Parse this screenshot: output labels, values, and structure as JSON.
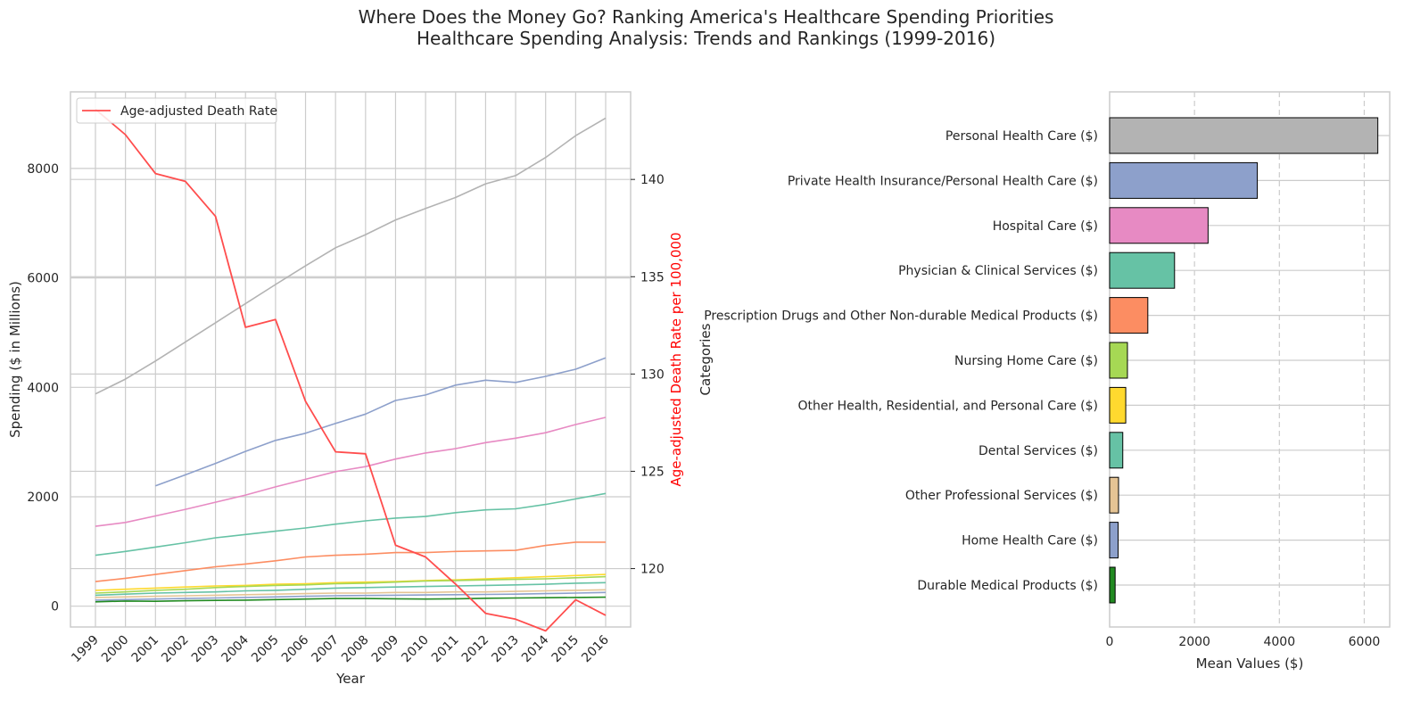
{
  "suptitle": "Where Does the Money Go? Ranking America's Healthcare Spending Priorities",
  "subtitle": "Healthcare Spending Analysis: Trends and Rankings (1999-2016)",
  "chart_data": [
    {
      "type": "line",
      "xlabel": "Year",
      "ylabel": "Spending ($ in Millions)",
      "y2label": "Age-adjusted Death Rate per 100,000",
      "x": [
        "1999",
        "2000",
        "2001",
        "2002",
        "2003",
        "2004",
        "2005",
        "2006",
        "2007",
        "2008",
        "2009",
        "2010",
        "2011",
        "2012",
        "2013",
        "2014",
        "2015",
        "2016"
      ],
      "ylim": [
        -380,
        9400
      ],
      "yticks": [
        0,
        2000,
        4000,
        6000,
        8000
      ],
      "y2lim": [
        117,
        144.5
      ],
      "y2ticks": [
        120,
        125,
        130,
        135,
        140
      ],
      "grid": true,
      "legend": {
        "position": "top-left",
        "entries": [
          "Age-adjusted Death Rate"
        ]
      },
      "series": [
        {
          "color": "#b3b3b3",
          "axis": "left",
          "values": [
            3880,
            4150,
            4480,
            4830,
            5180,
            5530,
            5880,
            6220,
            6550,
            6790,
            7060,
            7270,
            7470,
            7720,
            7870,
            8200,
            8600,
            8920
          ]
        },
        {
          "color": "#8da0cb",
          "axis": "left",
          "values": [
            null,
            null,
            2200,
            2400,
            2610,
            2830,
            3030,
            3160,
            3340,
            3510,
            3760,
            3860,
            4040,
            4130,
            4090,
            4200,
            4330,
            4540
          ]
        },
        {
          "color": "#e78ac3",
          "axis": "left",
          "values": [
            1460,
            1530,
            1650,
            1770,
            1900,
            2030,
            2180,
            2320,
            2460,
            2550,
            2690,
            2800,
            2880,
            2990,
            3070,
            3170,
            3320,
            3450
          ]
        },
        {
          "color": "#66c2a5",
          "axis": "left",
          "values": [
            930,
            1000,
            1080,
            1160,
            1250,
            1310,
            1370,
            1430,
            1500,
            1560,
            1610,
            1640,
            1710,
            1760,
            1780,
            1860,
            1960,
            2060
          ]
        },
        {
          "color": "#fc8d62",
          "axis": "left",
          "values": [
            450,
            510,
            580,
            650,
            720,
            770,
            830,
            900,
            930,
            950,
            980,
            980,
            1000,
            1010,
            1020,
            1110,
            1170,
            1170
          ]
        },
        {
          "color": "#ffd92f",
          "axis": "left",
          "values": [
            290,
            310,
            330,
            350,
            370,
            380,
            400,
            410,
            430,
            440,
            450,
            470,
            480,
            500,
            520,
            540,
            560,
            580
          ]
        },
        {
          "color": "#a6d854",
          "axis": "left",
          "values": [
            240,
            260,
            290,
            310,
            340,
            360,
            380,
            390,
            410,
            420,
            440,
            460,
            470,
            480,
            490,
            500,
            520,
            540
          ]
        },
        {
          "color": "#66c2a5",
          "axis": "left",
          "values": [
            200,
            220,
            240,
            250,
            260,
            280,
            290,
            310,
            330,
            340,
            350,
            360,
            370,
            380,
            390,
            400,
            420,
            430
          ]
        },
        {
          "color": "#e5c494",
          "axis": "left",
          "values": [
            160,
            170,
            180,
            190,
            200,
            210,
            220,
            230,
            240,
            240,
            250,
            250,
            260,
            260,
            270,
            280,
            290,
            300
          ]
        },
        {
          "color": "#8da0cb",
          "axis": "left",
          "values": [
            110,
            120,
            130,
            140,
            150,
            160,
            170,
            180,
            190,
            195,
            200,
            205,
            210,
            215,
            220,
            230,
            240,
            250
          ]
        },
        {
          "color": "#228b22",
          "axis": "left",
          "values": [
            80,
            95,
            90,
            100,
            105,
            110,
            120,
            130,
            140,
            140,
            135,
            130,
            135,
            145,
            150,
            155,
            160,
            165
          ]
        },
        {
          "name": "Age-adjusted Death Rate",
          "color": "#ff4d4d",
          "axis": "right",
          "values": [
            143.6,
            142.3,
            140.3,
            139.9,
            138.1,
            132.4,
            132.8,
            128.6,
            126.0,
            125.9,
            121.2,
            120.6,
            119.2,
            117.7,
            117.4,
            116.8,
            118.4,
            117.6
          ]
        }
      ]
    },
    {
      "type": "bar",
      "orientation": "horizontal",
      "xlabel": "Mean Values ($)",
      "ylabel": "Categories",
      "xlim": [
        0,
        6600
      ],
      "xticks": [
        0,
        2000,
        4000,
        6000
      ],
      "grid": true,
      "categories": [
        "Personal Health Care ($)",
        "Private Health Insurance/Personal Health Care ($)",
        "Hospital Care ($)",
        "Physician & Clinical Services ($)",
        "Prescription Drugs and Other Non-durable Medical Products ($)",
        "Nursing Home Care ($)",
        "Other Health, Residential, and Personal Care ($)",
        "Dental Services ($)",
        "Other Professional Services ($)",
        "Home Health Care ($)",
        "Durable Medical Products ($)"
      ],
      "values": [
        6320,
        3480,
        2320,
        1530,
        900,
        420,
        380,
        310,
        210,
        200,
        130
      ],
      "colors": [
        "#b3b3b3",
        "#8da0cb",
        "#e78ac3",
        "#66c2a5",
        "#fc8d62",
        "#a6d854",
        "#ffd92f",
        "#66c2a5",
        "#e5c494",
        "#8da0cb",
        "#228b22"
      ]
    }
  ]
}
